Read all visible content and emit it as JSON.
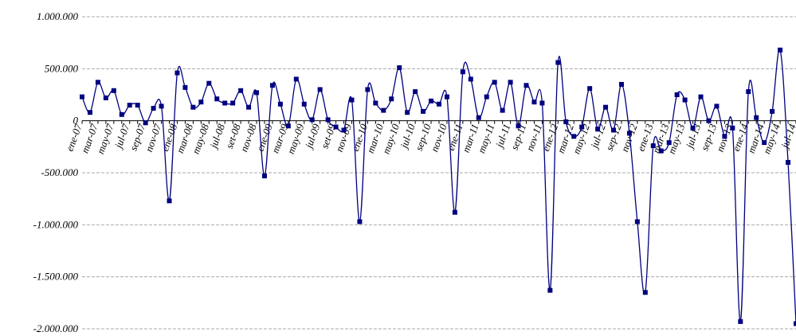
{
  "chart_data": {
    "type": "line",
    "color": "#000080",
    "grid": true,
    "smooth": true,
    "categories": [
      "ene-07",
      null,
      "mar-07",
      null,
      "may-07",
      null,
      "jul-07",
      null,
      "sep-07",
      null,
      "nov-07",
      null,
      "ene-08",
      null,
      "mar-08",
      null,
      "may-08",
      null,
      "jul-08",
      null,
      "set-08",
      null,
      "nov-08",
      null,
      "ene-09",
      null,
      "mar-09",
      null,
      "may-09",
      null,
      "jul-09",
      null,
      "set-09",
      null,
      "nov-09",
      null,
      "ene-10",
      null,
      "mar-10",
      null,
      "may-10",
      null,
      "jul-10",
      null,
      "sep-10",
      null,
      "nov-10",
      null,
      "ene-11",
      null,
      "mar-11",
      null,
      "may-11",
      null,
      "jul-11",
      null,
      "sep-11",
      null,
      "nov-11",
      null,
      "ene-12",
      null,
      "mar-12",
      null,
      "may-12",
      null,
      "jul-12",
      null,
      "sep-12",
      null,
      "nov-12",
      null,
      "ene-13",
      null,
      "mar-13",
      null,
      "may-13",
      null,
      "jul-13",
      null,
      "sep-13",
      null,
      "nov-13",
      null,
      "ene-14",
      null,
      "mar-14",
      null,
      "may-14",
      null,
      "jul-14"
    ],
    "values": [
      230000,
      80000,
      370000,
      220000,
      290000,
      60000,
      150000,
      150000,
      -20000,
      120000,
      140000,
      -770000,
      460000,
      320000,
      130000,
      180000,
      360000,
      210000,
      170000,
      170000,
      290000,
      130000,
      270000,
      -530000,
      340000,
      160000,
      -50000,
      400000,
      160000,
      10000,
      300000,
      10000,
      -60000,
      -90000,
      200000,
      -970000,
      300000,
      170000,
      100000,
      210000,
      510000,
      80000,
      280000,
      90000,
      190000,
      160000,
      230000,
      -880000,
      470000,
      400000,
      30000,
      230000,
      370000,
      100000,
      370000,
      -50000,
      340000,
      180000,
      170000,
      -1630000,
      560000,
      -10000,
      -150000,
      -60000,
      310000,
      -80000,
      130000,
      -90000,
      350000,
      -120000,
      -970000,
      -1650000,
      -240000,
      -290000,
      -210000,
      250000,
      200000,
      -70000,
      230000,
      0,
      140000,
      -150000,
      -70000,
      -1930000,
      280000,
      30000,
      -210000,
      90000,
      680000,
      -400000,
      -1950000
    ],
    "ylim": [
      -2000000,
      1000000
    ],
    "yticks": [
      {
        "value": -2000000,
        "label": "-2.000.000"
      },
      {
        "value": -1500000,
        "label": "-1.500.000"
      },
      {
        "value": -1000000,
        "label": "-1.000.000"
      },
      {
        "value": -500000,
        "label": "-500.000"
      },
      0,
      {
        "value": 500000,
        "label": "500.000"
      },
      {
        "value": 1000000,
        "label": "1.000.000"
      }
    ]
  }
}
